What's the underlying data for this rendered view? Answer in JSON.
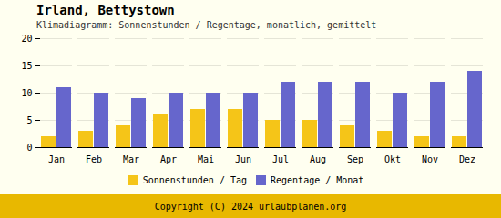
{
  "chart_data": {
    "type": "bar",
    "title": "Irland, Bettystown",
    "subtitle": "Klimadiagramm: Sonnenstunden / Regentage, monatlich, gemittelt",
    "caption": "Copyright (C) 2024 urlaubplanen.org",
    "categories": [
      "Jan",
      "Feb",
      "Mar",
      "Apr",
      "Mai",
      "Jun",
      "Jul",
      "Aug",
      "Sep",
      "Okt",
      "Nov",
      "Dez"
    ],
    "series": [
      {
        "name": "Sonnenstunden / Tag",
        "color": "#f5c518",
        "values": [
          2,
          3,
          4,
          6,
          7,
          7,
          5,
          5,
          4,
          3,
          2,
          2
        ]
      },
      {
        "name": "Regentage / Monat",
        "color": "#6666cc",
        "values": [
          11,
          10,
          9,
          10,
          10,
          10,
          12,
          12,
          12,
          10,
          12,
          14
        ]
      }
    ],
    "ylim": [
      0,
      20
    ],
    "yticks": [
      0,
      5,
      10,
      15,
      20
    ],
    "grid": true,
    "legend": "bottom"
  }
}
